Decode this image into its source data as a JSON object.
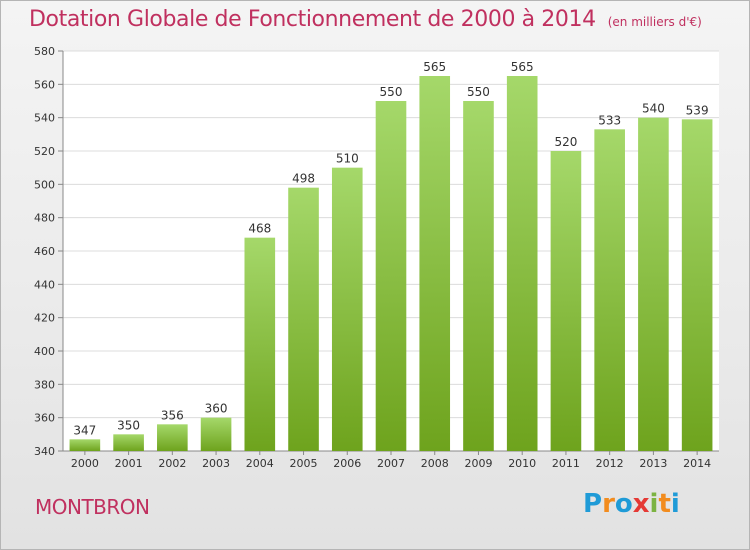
{
  "header": {
    "title": "Dotation Globale de Fonctionnement de 2000 à 2014",
    "unit": "(en milliers d'€)"
  },
  "footer": {
    "commune": "MONTBRON",
    "logo_letters": [
      "P",
      "r",
      "o",
      "x",
      "i",
      "t",
      "i"
    ],
    "logo_colors": [
      "#1f9bd7",
      "#f28c1e",
      "#1f9bd7",
      "#e53935",
      "#7cb342",
      "#f28c1e",
      "#1f9bd7"
    ]
  },
  "colors": {
    "title": "#c0305f",
    "bar_light": "#a5d86a",
    "bar_dark": "#6ea31d"
  },
  "chart_data": {
    "type": "bar",
    "categories": [
      "2000",
      "2001",
      "2002",
      "2003",
      "2004",
      "2005",
      "2006",
      "2007",
      "2008",
      "2009",
      "2010",
      "2011",
      "2012",
      "2013",
      "2014"
    ],
    "values": [
      347,
      350,
      356,
      360,
      468,
      498,
      510,
      550,
      565,
      550,
      565,
      520,
      533,
      540,
      539
    ],
    "ylim": [
      340,
      580
    ],
    "yticks": [
      340,
      360,
      380,
      400,
      420,
      440,
      460,
      480,
      500,
      520,
      540,
      560,
      580
    ],
    "grid": true,
    "legend": "none"
  }
}
